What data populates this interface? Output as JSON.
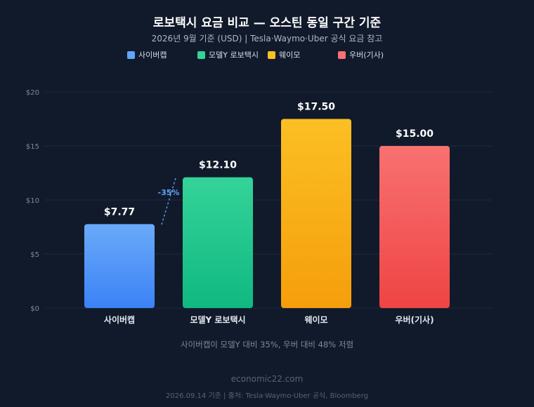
{
  "chart_data": {
    "type": "bar",
    "title": "로보택시 요금 비교 — 오스틴 동일 구간 기준",
    "subtitle": "2026년 9월 기준 (USD) | Tesla·Waymo·Uber 공식 요금 참고",
    "categories": [
      "사이버캡",
      "모델Y 로보택시",
      "웨이모",
      "우버(기사)"
    ],
    "values": [
      7.77,
      12.1,
      17.5,
      15.0
    ],
    "value_labels": [
      "$7.77",
      "$12.10",
      "$17.50",
      "$15.00"
    ],
    "colors": [
      {
        "top": "#6aaaf9",
        "bottom": "#3b82f6"
      },
      {
        "top": "#34d399",
        "bottom": "#10b981"
      },
      {
        "top": "#fbbf24",
        "bottom": "#f59e0b"
      },
      {
        "top": "#f87171",
        "bottom": "#ef4444"
      }
    ],
    "legend": {
      "position": "top",
      "entries": [
        {
          "label": "사이버캡",
          "color": "#60a5fa"
        },
        {
          "label": "모델Y 로보택시",
          "color": "#34d399"
        },
        {
          "label": "웨이모",
          "color": "#fbbf24"
        },
        {
          "label": "우버(기사)",
          "color": "#f87171"
        }
      ]
    },
    "ylim": [
      0,
      20
    ],
    "yticks": [
      0,
      5,
      10,
      15,
      20
    ],
    "ytick_labels": [
      "$0",
      "$5",
      "$10",
      "$15",
      "$20"
    ],
    "grid": true,
    "annotation": {
      "text": "-35%",
      "between": [
        "사이버캡",
        "모델Y 로보택시"
      ],
      "color": "#60a5fa"
    }
  },
  "insight": "사이버캡이 모델Y 대비 35%, 우버 대비 48% 저렴",
  "brand": "economic22.com",
  "source": "2026.09.14 기준 | 출처: Tesla·Waymo·Uber 공식, Bloomberg"
}
